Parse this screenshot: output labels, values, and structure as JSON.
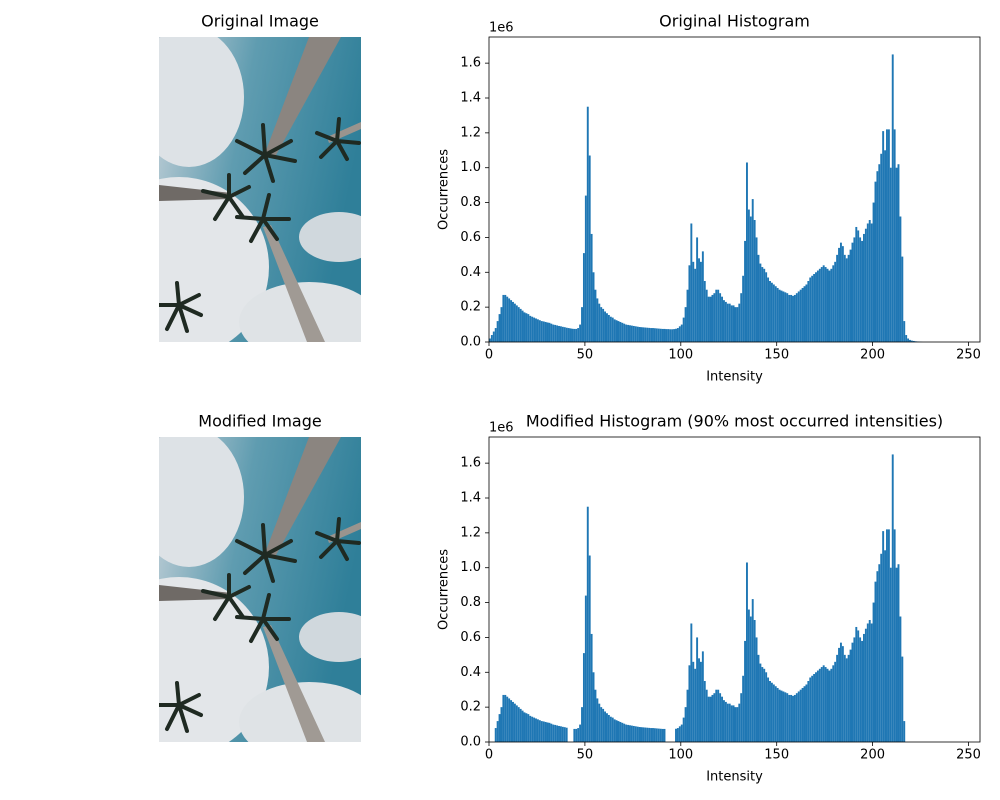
{
  "images": [
    {
      "title": "Original Image"
    },
    {
      "title": "Modified Image"
    }
  ],
  "chart_data": [
    {
      "type": "histogram",
      "title": "Original Histogram",
      "x_label": "Intensity",
      "y_label": "Occurrences",
      "y_offset_label": "1e6",
      "color": "#1f77b4",
      "xlim": [
        0,
        256
      ],
      "xticks": [
        0,
        50,
        100,
        150,
        200,
        250
      ],
      "ylim": [
        0,
        1.75
      ],
      "yticks": [
        {
          "value": 0,
          "label": "0.0"
        },
        {
          "value": 0.2,
          "label": "0.2"
        },
        {
          "value": 0.4,
          "label": "0.4"
        },
        {
          "value": 0.6,
          "label": "0.6"
        },
        {
          "value": 0.8,
          "label": "0.8"
        },
        {
          "value": 1,
          "label": "1.0"
        },
        {
          "value": 1.2,
          "label": "1.2"
        },
        {
          "value": 1.4,
          "label": "1.4"
        },
        {
          "value": 1.6,
          "label": "1.6"
        }
      ],
      "bins": [
        0,
        1,
        2,
        3,
        4,
        5,
        6,
        7,
        8,
        9,
        10,
        11,
        12,
        13,
        14,
        15,
        16,
        17,
        18,
        19,
        20,
        21,
        22,
        23,
        24,
        25,
        26,
        27,
        28,
        29,
        30,
        31,
        32,
        33,
        34,
        35,
        36,
        37,
        38,
        39,
        40,
        41,
        42,
        43,
        44,
        45,
        46,
        47,
        48,
        49,
        50,
        51,
        52,
        53,
        54,
        55,
        56,
        57,
        58,
        59,
        60,
        61,
        62,
        63,
        64,
        65,
        66,
        67,
        68,
        69,
        70,
        71,
        72,
        73,
        74,
        75,
        76,
        77,
        78,
        79,
        80,
        81,
        82,
        83,
        84,
        85,
        86,
        87,
        88,
        89,
        90,
        91,
        92,
        93,
        94,
        95,
        96,
        97,
        98,
        99,
        100,
        101,
        102,
        103,
        104,
        105,
        106,
        107,
        108,
        109,
        110,
        111,
        112,
        113,
        114,
        115,
        116,
        117,
        118,
        119,
        120,
        121,
        122,
        123,
        124,
        125,
        126,
        127,
        128,
        129,
        130,
        131,
        132,
        133,
        134,
        135,
        136,
        137,
        138,
        139,
        140,
        141,
        142,
        143,
        144,
        145,
        146,
        147,
        148,
        149,
        150,
        151,
        152,
        153,
        154,
        155,
        156,
        157,
        158,
        159,
        160,
        161,
        162,
        163,
        164,
        165,
        166,
        167,
        168,
        169,
        170,
        171,
        172,
        173,
        174,
        175,
        176,
        177,
        178,
        179,
        180,
        181,
        182,
        183,
        184,
        185,
        186,
        187,
        188,
        189,
        190,
        191,
        192,
        193,
        194,
        195,
        196,
        197,
        198,
        199,
        200,
        201,
        202,
        203,
        204,
        205,
        206,
        207,
        208,
        209,
        210,
        211,
        212,
        213,
        214,
        215,
        216,
        217,
        218,
        219,
        220,
        221,
        222,
        223,
        224,
        225,
        226,
        227,
        228,
        229,
        230,
        231,
        232,
        233,
        234,
        235,
        236,
        237,
        238,
        239,
        240,
        241,
        242,
        243,
        244,
        245,
        246,
        247,
        248,
        249,
        250,
        251,
        252,
        253,
        254,
        255,
        256
      ],
      "values": [
        0.02,
        0.04,
        0.06,
        0.08,
        0.12,
        0.16,
        0.2,
        0.27,
        0.27,
        0.26,
        0.25,
        0.24,
        0.23,
        0.22,
        0.21,
        0.2,
        0.19,
        0.18,
        0.17,
        0.165,
        0.16,
        0.15,
        0.145,
        0.14,
        0.135,
        0.13,
        0.125,
        0.12,
        0.118,
        0.115,
        0.112,
        0.11,
        0.105,
        0.1,
        0.098,
        0.095,
        0.092,
        0.09,
        0.087,
        0.085,
        0.082,
        0.08,
        0.078,
        0.076,
        0.075,
        0.075,
        0.08,
        0.1,
        0.2,
        0.51,
        0.84,
        1.35,
        1.07,
        0.62,
        0.4,
        0.3,
        0.25,
        0.22,
        0.2,
        0.19,
        0.175,
        0.165,
        0.155,
        0.145,
        0.14,
        0.13,
        0.125,
        0.12,
        0.115,
        0.11,
        0.105,
        0.1,
        0.098,
        0.096,
        0.094,
        0.092,
        0.09,
        0.088,
        0.086,
        0.085,
        0.084,
        0.083,
        0.082,
        0.081,
        0.08,
        0.08,
        0.079,
        0.078,
        0.077,
        0.076,
        0.075,
        0.075,
        0.074,
        0.074,
        0.073,
        0.073,
        0.074,
        0.076,
        0.08,
        0.09,
        0.1,
        0.14,
        0.2,
        0.3,
        0.44,
        0.68,
        0.46,
        0.42,
        0.6,
        0.48,
        0.46,
        0.52,
        0.35,
        0.3,
        0.26,
        0.26,
        0.27,
        0.28,
        0.3,
        0.3,
        0.28,
        0.26,
        0.24,
        0.23,
        0.22,
        0.22,
        0.21,
        0.21,
        0.2,
        0.2,
        0.22,
        0.28,
        0.38,
        0.58,
        1.03,
        0.76,
        0.72,
        0.82,
        0.7,
        0.6,
        0.5,
        0.45,
        0.43,
        0.42,
        0.4,
        0.37,
        0.35,
        0.34,
        0.33,
        0.32,
        0.31,
        0.3,
        0.295,
        0.29,
        0.285,
        0.28,
        0.27,
        0.27,
        0.265,
        0.27,
        0.28,
        0.29,
        0.3,
        0.31,
        0.32,
        0.33,
        0.35,
        0.37,
        0.38,
        0.39,
        0.4,
        0.41,
        0.42,
        0.43,
        0.44,
        0.43,
        0.42,
        0.41,
        0.42,
        0.44,
        0.46,
        0.5,
        0.54,
        0.57,
        0.55,
        0.5,
        0.48,
        0.5,
        0.53,
        0.57,
        0.6,
        0.66,
        0.64,
        0.6,
        0.58,
        0.62,
        0.65,
        0.68,
        0.7,
        0.68,
        0.8,
        0.92,
        0.98,
        1.02,
        1.08,
        1.21,
        1.1,
        1.22,
        1.22,
        1.0,
        1.65,
        1.22,
        1.0,
        1.02,
        0.72,
        0.49,
        0.12,
        0.04,
        0.02,
        0.012,
        0.008,
        0.006,
        0.004,
        0.003,
        0.002,
        0.001,
        0,
        0,
        0,
        0,
        0,
        0,
        0,
        0,
        0,
        0,
        0,
        0,
        0,
        0,
        0,
        0,
        0,
        0,
        0,
        0,
        0,
        0,
        0,
        0,
        0,
        0,
        0,
        0,
        0,
        0
      ]
    },
    {
      "type": "histogram",
      "title": "Modified Histogram (90% most occurred intensities)",
      "x_label": "Intensity",
      "y_label": "Occurrences",
      "y_offset_label": "1e6",
      "color": "#1f77b4",
      "xlim": [
        0,
        256
      ],
      "xticks": [
        0,
        50,
        100,
        150,
        200,
        250
      ],
      "ylim": [
        0,
        1.75
      ],
      "yticks": [
        {
          "value": 0,
          "label": "0.0"
        },
        {
          "value": 0.2,
          "label": "0.2"
        },
        {
          "value": 0.4,
          "label": "0.4"
        },
        {
          "value": 0.6,
          "label": "0.6"
        },
        {
          "value": 0.8,
          "label": "0.8"
        },
        {
          "value": 1,
          "label": "1.0"
        },
        {
          "value": 1.2,
          "label": "1.2"
        },
        {
          "value": 1.4,
          "label": "1.4"
        },
        {
          "value": 1.6,
          "label": "1.6"
        }
      ],
      "bins": [
        0,
        1,
        2,
        3,
        4,
        5,
        6,
        7,
        8,
        9,
        10,
        11,
        12,
        13,
        14,
        15,
        16,
        17,
        18,
        19,
        20,
        21,
        22,
        23,
        24,
        25,
        26,
        27,
        28,
        29,
        30,
        31,
        32,
        33,
        34,
        35,
        36,
        37,
        38,
        39,
        40,
        41,
        42,
        43,
        44,
        45,
        46,
        47,
        48,
        49,
        50,
        51,
        52,
        53,
        54,
        55,
        56,
        57,
        58,
        59,
        60,
        61,
        62,
        63,
        64,
        65,
        66,
        67,
        68,
        69,
        70,
        71,
        72,
        73,
        74,
        75,
        76,
        77,
        78,
        79,
        80,
        81,
        82,
        83,
        84,
        85,
        86,
        87,
        88,
        89,
        90,
        91,
        92,
        93,
        94,
        95,
        96,
        97,
        98,
        99,
        100,
        101,
        102,
        103,
        104,
        105,
        106,
        107,
        108,
        109,
        110,
        111,
        112,
        113,
        114,
        115,
        116,
        117,
        118,
        119,
        120,
        121,
        122,
        123,
        124,
        125,
        126,
        127,
        128,
        129,
        130,
        131,
        132,
        133,
        134,
        135,
        136,
        137,
        138,
        139,
        140,
        141,
        142,
        143,
        144,
        145,
        146,
        147,
        148,
        149,
        150,
        151,
        152,
        153,
        154,
        155,
        156,
        157,
        158,
        159,
        160,
        161,
        162,
        163,
        164,
        165,
        166,
        167,
        168,
        169,
        170,
        171,
        172,
        173,
        174,
        175,
        176,
        177,
        178,
        179,
        180,
        181,
        182,
        183,
        184,
        185,
        186,
        187,
        188,
        189,
        190,
        191,
        192,
        193,
        194,
        195,
        196,
        197,
        198,
        199,
        200,
        201,
        202,
        203,
        204,
        205,
        206,
        207,
        208,
        209,
        210,
        211,
        212,
        213,
        214,
        215,
        216,
        217,
        218,
        219,
        220,
        221,
        222,
        223,
        224,
        225,
        226,
        227,
        228,
        229,
        230,
        231,
        232,
        233,
        234,
        235,
        236,
        237,
        238,
        239,
        240,
        241,
        242,
        243,
        244,
        245,
        246,
        247,
        248,
        249,
        250,
        251,
        252,
        253,
        254,
        255,
        256
      ],
      "values": [
        0,
        0,
        0,
        0.08,
        0.12,
        0.16,
        0.2,
        0.27,
        0.27,
        0.26,
        0.25,
        0.24,
        0.23,
        0.22,
        0.21,
        0.2,
        0.19,
        0.18,
        0.17,
        0.165,
        0.16,
        0.15,
        0.145,
        0.14,
        0.135,
        0.13,
        0.125,
        0.12,
        0.118,
        0.115,
        0.112,
        0.11,
        0.105,
        0.1,
        0.098,
        0.095,
        0.092,
        0.09,
        0.087,
        0.085,
        0.082,
        0,
        0,
        0,
        0.075,
        0.075,
        0.08,
        0.1,
        0.2,
        0.51,
        0.84,
        1.35,
        1.07,
        0.62,
        0.4,
        0.3,
        0.25,
        0.22,
        0.2,
        0.19,
        0.175,
        0.165,
        0.155,
        0.145,
        0.14,
        0.13,
        0.125,
        0.12,
        0.115,
        0.11,
        0.105,
        0.1,
        0.098,
        0.096,
        0.094,
        0.092,
        0.09,
        0.088,
        0.086,
        0.085,
        0.084,
        0.083,
        0.082,
        0.081,
        0.08,
        0.08,
        0.079,
        0.078,
        0.077,
        0.076,
        0.075,
        0.075,
        0,
        0,
        0,
        0,
        0,
        0.076,
        0.08,
        0.09,
        0.1,
        0.14,
        0.2,
        0.3,
        0.44,
        0.68,
        0.46,
        0.42,
        0.6,
        0.48,
        0.46,
        0.52,
        0.35,
        0.3,
        0.26,
        0.26,
        0.27,
        0.28,
        0.3,
        0.3,
        0.28,
        0.26,
        0.24,
        0.23,
        0.22,
        0.22,
        0.21,
        0.21,
        0.2,
        0.2,
        0.22,
        0.28,
        0.38,
        0.58,
        1.03,
        0.76,
        0.72,
        0.82,
        0.7,
        0.6,
        0.5,
        0.45,
        0.43,
        0.42,
        0.4,
        0.37,
        0.35,
        0.34,
        0.33,
        0.32,
        0.31,
        0.3,
        0.295,
        0.29,
        0.285,
        0.28,
        0.27,
        0.27,
        0.265,
        0.27,
        0.28,
        0.29,
        0.3,
        0.31,
        0.32,
        0.33,
        0.35,
        0.37,
        0.38,
        0.39,
        0.4,
        0.41,
        0.42,
        0.43,
        0.44,
        0.43,
        0.42,
        0.41,
        0.42,
        0.44,
        0.46,
        0.5,
        0.54,
        0.57,
        0.55,
        0.5,
        0.48,
        0.5,
        0.53,
        0.57,
        0.6,
        0.66,
        0.64,
        0.6,
        0.58,
        0.62,
        0.65,
        0.68,
        0.7,
        0.68,
        0.8,
        0.92,
        0.98,
        1.02,
        1.08,
        1.21,
        1.1,
        1.22,
        1.22,
        1.0,
        1.65,
        1.22,
        1.0,
        1.02,
        0.72,
        0.49,
        0.12,
        0,
        0,
        0,
        0,
        0,
        0,
        0,
        0,
        0,
        0,
        0,
        0,
        0,
        0,
        0,
        0,
        0,
        0,
        0,
        0,
        0,
        0,
        0,
        0,
        0,
        0,
        0,
        0,
        0,
        0,
        0,
        0,
        0,
        0,
        0,
        0,
        0,
        0,
        0
      ]
    }
  ]
}
